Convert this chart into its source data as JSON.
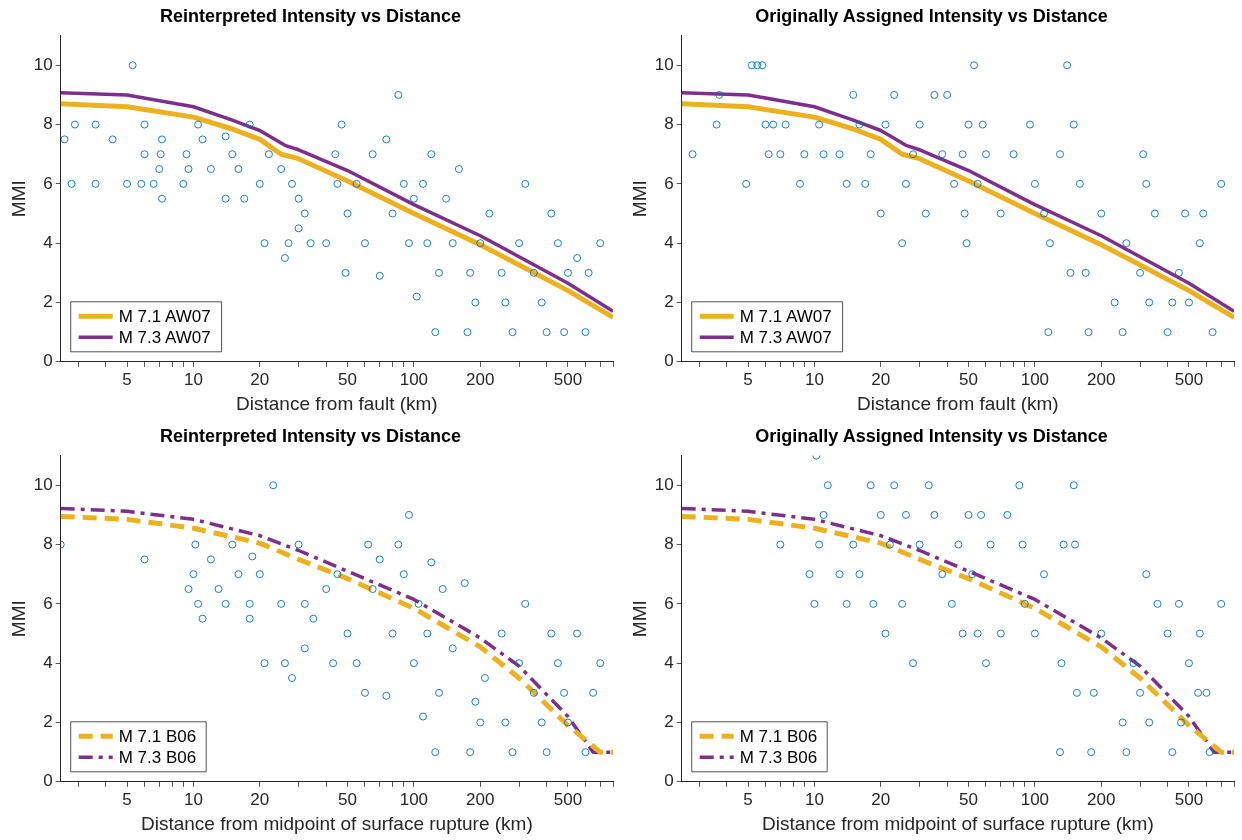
{
  "chart_data": [
    {
      "type": "scatter",
      "title": "Reinterpreted Intensity vs Distance",
      "xlabel": "Distance from fault (km)",
      "ylabel": "MMI",
      "log": "x",
      "xlim": [
        2.5,
        800
      ],
      "ylim": [
        0,
        11
      ],
      "grid": false,
      "legend": "bottom left",
      "xticks": [
        {
          "value": 3,
          "label": null
        },
        {
          "value": 4,
          "label": null
        },
        5,
        {
          "value": 6,
          "label": null
        },
        {
          "value": 7,
          "label": null
        },
        {
          "value": 8,
          "label": null
        },
        {
          "value": 9,
          "label": null
        },
        10,
        20,
        {
          "value": 30,
          "label": null
        },
        {
          "value": 40,
          "label": null
        },
        50,
        {
          "value": 60,
          "label": null
        },
        {
          "value": 70,
          "label": null
        },
        {
          "value": 80,
          "label": null
        },
        {
          "value": 90,
          "label": null
        },
        100,
        200,
        {
          "value": 300,
          "label": null
        },
        {
          "value": 400,
          "label": null
        },
        500,
        {
          "value": 600,
          "label": null
        },
        {
          "value": 700,
          "label": null
        },
        {
          "value": 800,
          "label": null
        }
      ],
      "yticks": [
        0,
        2,
        4,
        6,
        8,
        10
      ],
      "series": [
        {
          "marker": "circle",
          "color": "#0072bd",
          "x": [
            2.6,
            2.8,
            2.9,
            3.6,
            3.6,
            4.3,
            5,
            5.3,
            5.8,
            6,
            6,
            6.6,
            7,
            7.1,
            7.2,
            7.2,
            9,
            9.3,
            9.5,
            10.5,
            11,
            12,
            14,
            14,
            15,
            16,
            17,
            18,
            20,
            21,
            22,
            25,
            26,
            27,
            28,
            30,
            30,
            32,
            34,
            40,
            44,
            45,
            47,
            49,
            50,
            55,
            60,
            65,
            70,
            75,
            80,
            85,
            90,
            95,
            100,
            103,
            110,
            115,
            120,
            125,
            130,
            140,
            150,
            160,
            175,
            180,
            190,
            200,
            220,
            250,
            260,
            280,
            300,
            320,
            350,
            380,
            400,
            420,
            450,
            480,
            500,
            550,
            600,
            620,
            700
          ],
          "values": [
            7.5,
            6,
            8,
            6,
            8,
            7.5,
            6,
            10,
            6,
            7,
            8,
            6,
            6.5,
            7,
            7.5,
            5.5,
            6,
            7,
            6.5,
            8,
            7.5,
            6.5,
            7.6,
            5.5,
            7,
            6.5,
            5.5,
            8,
            6,
            4,
            7,
            6.5,
            3.5,
            4,
            6,
            5.5,
            4.5,
            5,
            4,
            4,
            7,
            6,
            8,
            3,
            5,
            6,
            4,
            7,
            2.9,
            7.5,
            5,
            9,
            6,
            4,
            5.5,
            2.2,
            6,
            4,
            7,
            1,
            3,
            5.5,
            4,
            6.5,
            1,
            3,
            2,
            4,
            5,
            3,
            2,
            1,
            4,
            6,
            3,
            2,
            1,
            5,
            4,
            1,
            3,
            3.5,
            1,
            3,
            4
          ]
        },
        {
          "type": "line",
          "name": "M 7.1 AW07",
          "color": "#edb120",
          "line_style": "solid",
          "x": [
            2.5,
            5,
            10,
            15,
            20,
            25,
            30,
            50,
            100,
            200,
            500,
            800
          ],
          "values": [
            8.7,
            8.6,
            8.25,
            7.85,
            7.5,
            7.0,
            6.85,
            6.1,
            5.0,
            3.95,
            2.4,
            1.5
          ]
        },
        {
          "type": "line",
          "name": "M 7.3 AW07",
          "color": "#7e2f8e",
          "line_style": "solid",
          "x": [
            2.5,
            5,
            10,
            15,
            20,
            26,
            30,
            50,
            100,
            200,
            500,
            800
          ],
          "values": [
            9.07,
            9.0,
            8.6,
            8.15,
            7.8,
            7.3,
            7.15,
            6.45,
            5.3,
            4.25,
            2.65,
            1.7
          ]
        }
      ]
    },
    {
      "type": "scatter",
      "title": "Originally Assigned Intensity vs Distance",
      "xlabel": "Distance from fault (km)",
      "ylabel": "MMI",
      "log": "x",
      "xlim": [
        2.5,
        800
      ],
      "ylim": [
        0,
        11
      ],
      "grid": false,
      "legend": "bottom left",
      "xticks": [
        {
          "value": 3,
          "label": null
        },
        {
          "value": 4,
          "label": null
        },
        5,
        {
          "value": 6,
          "label": null
        },
        {
          "value": 7,
          "label": null
        },
        {
          "value": 8,
          "label": null
        },
        {
          "value": 9,
          "label": null
        },
        10,
        20,
        {
          "value": 30,
          "label": null
        },
        {
          "value": 40,
          "label": null
        },
        50,
        {
          "value": 60,
          "label": null
        },
        {
          "value": 70,
          "label": null
        },
        {
          "value": 80,
          "label": null
        },
        {
          "value": 90,
          "label": null
        },
        100,
        200,
        {
          "value": 300,
          "label": null
        },
        {
          "value": 400,
          "label": null
        },
        500,
        {
          "value": 600,
          "label": null
        },
        {
          "value": 700,
          "label": null
        },
        {
          "value": 800,
          "label": null
        }
      ],
      "yticks": [
        0,
        2,
        4,
        6,
        8,
        10
      ],
      "series": [
        {
          "marker": "circle",
          "color": "#0072bd",
          "x": [
            2.8,
            3.6,
            3.7,
            4.9,
            5.2,
            5.5,
            5.8,
            6,
            6.2,
            6.5,
            7,
            7.4,
            8.6,
            9,
            10.5,
            11,
            13,
            14,
            15,
            16,
            17,
            18,
            20,
            21,
            23,
            25,
            26,
            28,
            30,
            32,
            35,
            38,
            40,
            43,
            47,
            48,
            49,
            50,
            53,
            55,
            58,
            60,
            70,
            80,
            95,
            100,
            110,
            115,
            117,
            130,
            140,
            145,
            150,
            160,
            170,
            175,
            200,
            230,
            250,
            260,
            300,
            310,
            320,
            330,
            350,
            400,
            420,
            450,
            480,
            500,
            560,
            580,
            640,
            700
          ],
          "values": [
            7,
            8,
            9,
            6,
            10,
            10,
            10,
            8,
            7,
            8,
            7,
            8,
            6,
            7,
            8,
            7,
            7,
            6,
            9,
            8,
            6,
            7,
            5,
            8,
            9,
            4,
            6,
            7,
            8,
            5,
            9,
            7,
            9,
            6,
            7,
            5,
            4,
            8,
            10,
            6,
            8,
            7,
            5,
            7,
            8,
            6,
            5,
            1,
            4,
            7,
            10,
            3,
            8,
            6,
            3,
            1,
            5,
            2,
            1,
            4,
            3,
            7,
            6,
            2,
            5,
            1,
            2,
            3,
            5,
            2,
            4,
            5,
            1,
            6
          ]
        },
        {
          "type": "line",
          "name": "M 7.1 AW07",
          "color": "#edb120",
          "line_style": "solid",
          "x": [
            2.5,
            5,
            10,
            15,
            20,
            25,
            30,
            50,
            100,
            200,
            500,
            800
          ],
          "values": [
            8.7,
            8.6,
            8.25,
            7.85,
            7.5,
            7.0,
            6.85,
            6.1,
            5.0,
            3.95,
            2.4,
            1.5
          ]
        },
        {
          "type": "line",
          "name": "M 7.3 AW07",
          "color": "#7e2f8e",
          "line_style": "solid",
          "x": [
            2.5,
            5,
            10,
            15,
            20,
            26,
            30,
            50,
            100,
            200,
            500,
            800
          ],
          "values": [
            9.07,
            9.0,
            8.6,
            8.15,
            7.8,
            7.3,
            7.15,
            6.45,
            5.3,
            4.25,
            2.65,
            1.7
          ]
        }
      ]
    },
    {
      "type": "scatter",
      "title": "Reinterpreted Intensity vs Distance",
      "xlabel": "Distance from midpoint of surface rupture (km)",
      "ylabel": "MMI",
      "log": "x",
      "xlim": [
        2.5,
        800
      ],
      "ylim": [
        0,
        11
      ],
      "grid": false,
      "legend": "bottom left",
      "xticks": [
        {
          "value": 3,
          "label": null
        },
        {
          "value": 4,
          "label": null
        },
        5,
        {
          "value": 6,
          "label": null
        },
        {
          "value": 7,
          "label": null
        },
        {
          "value": 8,
          "label": null
        },
        {
          "value": 9,
          "label": null
        },
        10,
        20,
        {
          "value": 30,
          "label": null
        },
        {
          "value": 40,
          "label": null
        },
        50,
        {
          "value": 60,
          "label": null
        },
        {
          "value": 70,
          "label": null
        },
        {
          "value": 80,
          "label": null
        },
        {
          "value": 90,
          "label": null
        },
        100,
        200,
        {
          "value": 300,
          "label": null
        },
        {
          "value": 400,
          "label": null
        },
        500,
        {
          "value": 600,
          "label": null
        },
        {
          "value": 700,
          "label": null
        },
        {
          "value": 800,
          "label": null
        }
      ],
      "yticks": [
        0,
        2,
        4,
        6,
        8,
        10
      ],
      "series": [
        {
          "marker": "circle",
          "color": "#0072bd",
          "x": [
            2.5,
            6,
            9.5,
            10,
            10.2,
            10.5,
            11,
            12,
            13,
            14,
            15,
            16,
            18,
            18,
            18.5,
            20,
            21,
            23,
            25,
            26,
            28,
            30,
            32,
            32,
            35,
            40,
            43,
            45,
            50,
            55,
            60,
            62,
            65,
            70,
            75,
            80,
            85,
            90,
            95,
            100,
            105,
            110,
            115,
            120,
            125,
            130,
            135,
            150,
            170,
            180,
            190,
            200,
            210,
            250,
            260,
            280,
            300,
            320,
            350,
            380,
            400,
            420,
            450,
            480,
            500,
            550,
            600,
            650,
            700
          ],
          "values": [
            8,
            7.5,
            6.5,
            7,
            8,
            6,
            5.5,
            7.5,
            6.5,
            6,
            8,
            7,
            6,
            5.5,
            7.6,
            7,
            4,
            10,
            6,
            4,
            3.5,
            8,
            6,
            4.5,
            5.5,
            6.5,
            4,
            7,
            5,
            4,
            3,
            8,
            6.5,
            7.5,
            2.9,
            5,
            8,
            7,
            9,
            4,
            6,
            2.2,
            5,
            7.4,
            1,
            3,
            6.5,
            4.5,
            6.7,
            1,
            2.7,
            2,
            3.5,
            5,
            2,
            1,
            4,
            6,
            3,
            2,
            1,
            5,
            4,
            3,
            2,
            5,
            1,
            3,
            4
          ]
        },
        {
          "type": "line",
          "name": "M 7.1 B06",
          "color": "#edb120",
          "line_style": "dashed",
          "x": [
            2.5,
            5,
            10,
            20,
            30,
            50,
            100,
            200,
            300,
            500,
            700,
            800
          ],
          "values": [
            8.95,
            8.85,
            8.55,
            8.05,
            7.5,
            6.85,
            5.85,
            4.55,
            3.5,
            1.9,
            1.0,
            1.0
          ]
        },
        {
          "type": "line",
          "name": "M 7.3 B06",
          "color": "#7e2f8e",
          "line_style": "dashdot",
          "x": [
            2.5,
            5,
            10,
            20,
            30,
            50,
            100,
            200,
            300,
            500,
            650,
            800
          ],
          "values": [
            9.22,
            9.12,
            8.85,
            8.3,
            7.8,
            7.1,
            6.15,
            4.85,
            3.9,
            2.2,
            1.0,
            1.0
          ]
        }
      ]
    },
    {
      "type": "scatter",
      "title": "Originally Assigned Intensity vs Distance",
      "xlabel": "Distance from midpoint of surface rupture (km)",
      "ylabel": "MMI",
      "log": "x",
      "xlim": [
        2.5,
        800
      ],
      "ylim": [
        0,
        11
      ],
      "grid": false,
      "legend": "bottom left",
      "xticks": [
        {
          "value": 3,
          "label": null
        },
        {
          "value": 4,
          "label": null
        },
        5,
        {
          "value": 6,
          "label": null
        },
        {
          "value": 7,
          "label": null
        },
        {
          "value": 8,
          "label": null
        },
        {
          "value": 9,
          "label": null
        },
        10,
        20,
        {
          "value": 30,
          "label": null
        },
        {
          "value": 40,
          "label": null
        },
        50,
        {
          "value": 60,
          "label": null
        },
        {
          "value": 70,
          "label": null
        },
        {
          "value": 80,
          "label": null
        },
        {
          "value": 90,
          "label": null
        },
        100,
        200,
        {
          "value": 300,
          "label": null
        },
        {
          "value": 400,
          "label": null
        },
        500,
        {
          "value": 600,
          "label": null
        },
        {
          "value": 700,
          "label": null
        },
        {
          "value": 800,
          "label": null
        }
      ],
      "yticks": [
        0,
        2,
        4,
        6,
        8,
        10
      ],
      "series": [
        {
          "marker": "circle",
          "color": "#0072bd",
          "x": [
            7,
            9.5,
            10,
            10.2,
            10.5,
            11,
            11.5,
            13,
            14,
            15,
            16,
            18,
            18.5,
            20,
            21,
            22,
            23,
            25,
            26,
            28,
            30,
            33,
            35,
            38,
            42,
            45,
            47,
            50,
            52,
            55,
            57,
            60,
            63,
            70,
            75,
            85,
            88,
            90,
            100,
            110,
            130,
            132,
            135,
            150,
            152,
            155,
            180,
            185,
            200,
            250,
            260,
            280,
            300,
            320,
            330,
            360,
            400,
            420,
            450,
            460,
            500,
            550,
            560,
            600,
            620,
            700
          ],
          "values": [
            8,
            7,
            6,
            11,
            8,
            9,
            10,
            7,
            6,
            8,
            7,
            10,
            6,
            9,
            5,
            8,
            10,
            6,
            9,
            4,
            8,
            10,
            9,
            7,
            6,
            8,
            5,
            9,
            7,
            5,
            9,
            4,
            8,
            5,
            9,
            10,
            8,
            6,
            5,
            7,
            1,
            4,
            8,
            10,
            8,
            3,
            1,
            3,
            5,
            2,
            1,
            4,
            3,
            7,
            2,
            6,
            5,
            1,
            6,
            2,
            4,
            3,
            5,
            3,
            1,
            6
          ]
        },
        {
          "type": "line",
          "name": "M 7.1 B06",
          "color": "#edb120",
          "line_style": "dashed",
          "x": [
            2.5,
            5,
            10,
            20,
            30,
            50,
            100,
            200,
            300,
            500,
            700,
            800
          ],
          "values": [
            8.95,
            8.85,
            8.55,
            8.05,
            7.5,
            6.85,
            5.85,
            4.55,
            3.5,
            1.9,
            1.0,
            1.0
          ]
        },
        {
          "type": "line",
          "name": "M 7.3 B06",
          "color": "#7e2f8e",
          "line_style": "dashdot",
          "x": [
            2.5,
            5,
            10,
            20,
            30,
            50,
            100,
            200,
            300,
            500,
            650,
            800
          ],
          "values": [
            9.22,
            9.12,
            8.85,
            8.3,
            7.8,
            7.1,
            6.15,
            4.85,
            3.9,
            2.2,
            1.0,
            1.0
          ]
        }
      ]
    }
  ]
}
